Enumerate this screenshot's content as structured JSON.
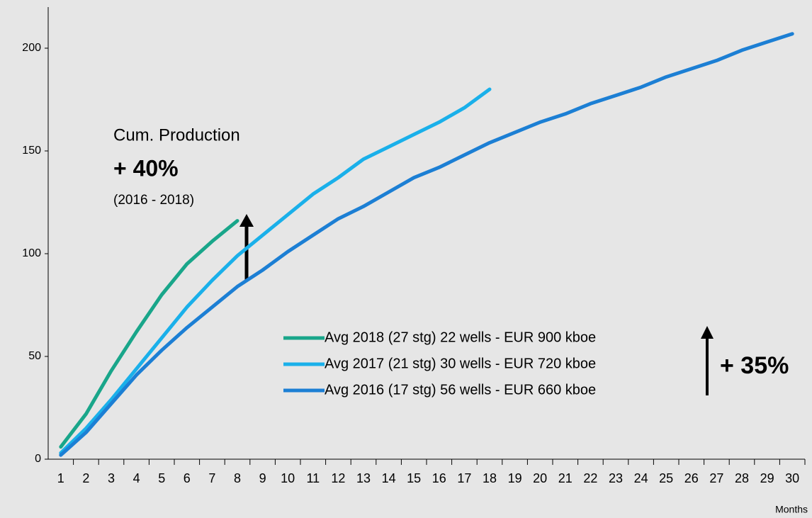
{
  "chart_data": {
    "type": "line",
    "x_label": "Months",
    "categories": [
      "1",
      "2",
      "3",
      "4",
      "5",
      "6",
      "7",
      "8",
      "9",
      "10",
      "11",
      "12",
      "13",
      "14",
      "15",
      "16",
      "17",
      "18",
      "19",
      "20",
      "21",
      "22",
      "23",
      "24",
      "25",
      "26",
      "27",
      "28",
      "29",
      "30"
    ],
    "series": [
      {
        "name": "Avg 2018 (27 stg) 22 wells - EUR 900 kboe",
        "color": "#19a68a",
        "values": [
          6,
          22,
          43,
          62,
          80,
          95,
          106,
          116,
          null,
          null,
          null,
          null,
          null,
          null,
          null,
          null,
          null,
          null,
          null,
          null,
          null,
          null,
          null,
          null,
          null,
          null,
          null,
          null,
          null,
          null
        ]
      },
      {
        "name": "Avg 2017 (21 stg) 30 wells - EUR 720 kboe",
        "color": "#1ab0ea",
        "values": [
          3,
          15,
          29,
          44,
          59,
          74,
          87,
          99,
          109,
          119,
          129,
          137,
          146,
          152,
          158,
          164,
          171,
          180,
          null,
          null,
          null,
          null,
          null,
          null,
          null,
          null,
          null,
          null,
          null,
          null
        ]
      },
      {
        "name": "Avg 2016 (17 stg) 56 wells - EUR 660 kboe",
        "color": "#1c7fd4",
        "values": [
          2,
          13,
          27,
          41,
          53,
          64,
          74,
          84,
          92,
          101,
          109,
          117,
          123,
          130,
          137,
          142,
          148,
          154,
          159,
          164,
          168,
          173,
          177,
          181,
          186,
          190,
          194,
          199,
          203,
          207
        ]
      }
    ],
    "ylim": [
      0,
      220
    ],
    "yticks": [
      0,
      50,
      100,
      150,
      200
    ],
    "legend": "lower right",
    "annotations": [
      "Cum. Production",
      "+ 40%",
      "(2016 - 2018)",
      "+ 35%"
    ]
  }
}
